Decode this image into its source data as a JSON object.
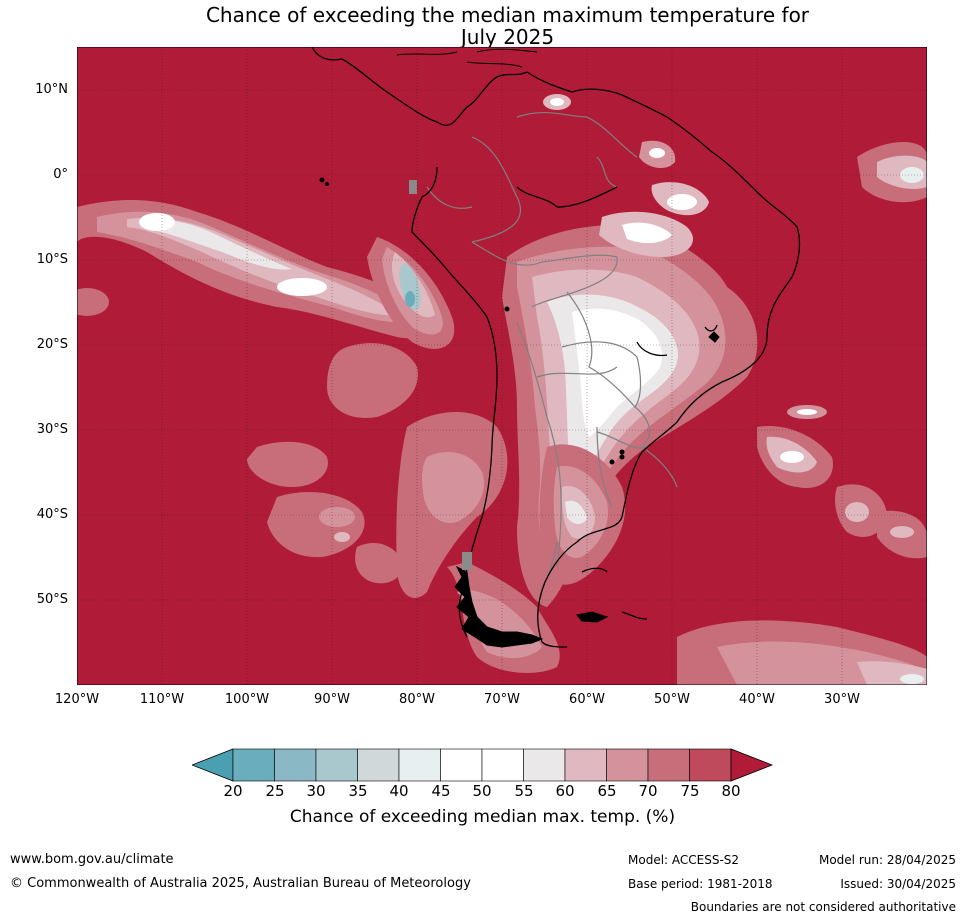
{
  "title_line1": "Chance of exceeding the median maximum temperature for",
  "title_line2": "July 2025",
  "lat_labels": [
    "10°N",
    "0°",
    "10°S",
    "20°S",
    "30°S",
    "40°S",
    "50°S"
  ],
  "lon_labels": [
    "120°W",
    "110°W",
    "100°W",
    "90°W",
    "80°W",
    "70°W",
    "60°W",
    "50°W",
    "40°W",
    "30°W"
  ],
  "colorbar": {
    "ticks": [
      "20",
      "25",
      "30",
      "35",
      "40",
      "45",
      "50",
      "55",
      "60",
      "65",
      "70",
      "75",
      "80"
    ],
    "colors": [
      "#4aa0b0",
      "#6aaebd",
      "#8ab8c5",
      "#a9c8cd",
      "#d0d8da",
      "#e8eff1",
      "#ffffff",
      "#ffffff",
      "#ebe8ea",
      "#e0b8bf",
      "#d4939c",
      "#c86d7a",
      "#bf4a5b",
      "#b01c37"
    ],
    "label": "Chance of exceeding median max. temp. (%)"
  },
  "colors": {
    "high": "#b01c37",
    "c75": "#bf4a5b",
    "c70": "#c86d7a",
    "c65": "#d4939c",
    "c60": "#e0b8bf",
    "c55": "#ebe8ea",
    "low": "#a9c8cd",
    "land_grey": "#8b8b8b"
  },
  "footer": {
    "website": "www.bom.gov.au/climate",
    "copyright": "© Commonwealth of Australia 2025, Australian Bureau of Meteorology",
    "model": "Model: ACCESS-S2",
    "model_run": "Model run: 28/04/2025",
    "base_period": "Base period: 1981-2018",
    "issued": "Issued: 30/04/2025",
    "disclaimer": "Boundaries are not considered authoritative"
  }
}
